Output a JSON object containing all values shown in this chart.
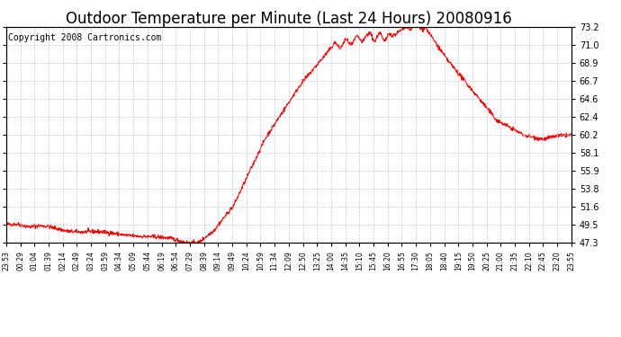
{
  "title": "Outdoor Temperature per Minute (Last 24 Hours) 20080916",
  "copyright": "Copyright 2008 Cartronics.com",
  "line_color": "#ff0000",
  "background_color": "#ffffff",
  "grid_color": "#bbbbbb",
  "yticks": [
    47.3,
    49.5,
    51.6,
    53.8,
    55.9,
    58.1,
    60.2,
    62.4,
    64.6,
    66.7,
    68.9,
    71.0,
    73.2
  ],
  "ymin": 47.3,
  "ymax": 73.2,
  "xtick_labels": [
    "23:53",
    "00:29",
    "01:04",
    "01:39",
    "02:14",
    "02:49",
    "03:24",
    "03:59",
    "04:34",
    "05:09",
    "05:44",
    "06:19",
    "06:54",
    "07:29",
    "08:39",
    "09:14",
    "09:49",
    "10:24",
    "10:59",
    "11:34",
    "12:09",
    "12:50",
    "13:25",
    "14:00",
    "14:35",
    "15:10",
    "15:45",
    "16:20",
    "16:55",
    "17:30",
    "18:05",
    "18:40",
    "19:15",
    "19:50",
    "20:25",
    "21:00",
    "21:35",
    "22:10",
    "22:45",
    "23:20",
    "23:55"
  ],
  "title_fontsize": 12,
  "copyright_fontsize": 7,
  "tick_fontsize": 7,
  "xtick_fontsize": 5.5
}
